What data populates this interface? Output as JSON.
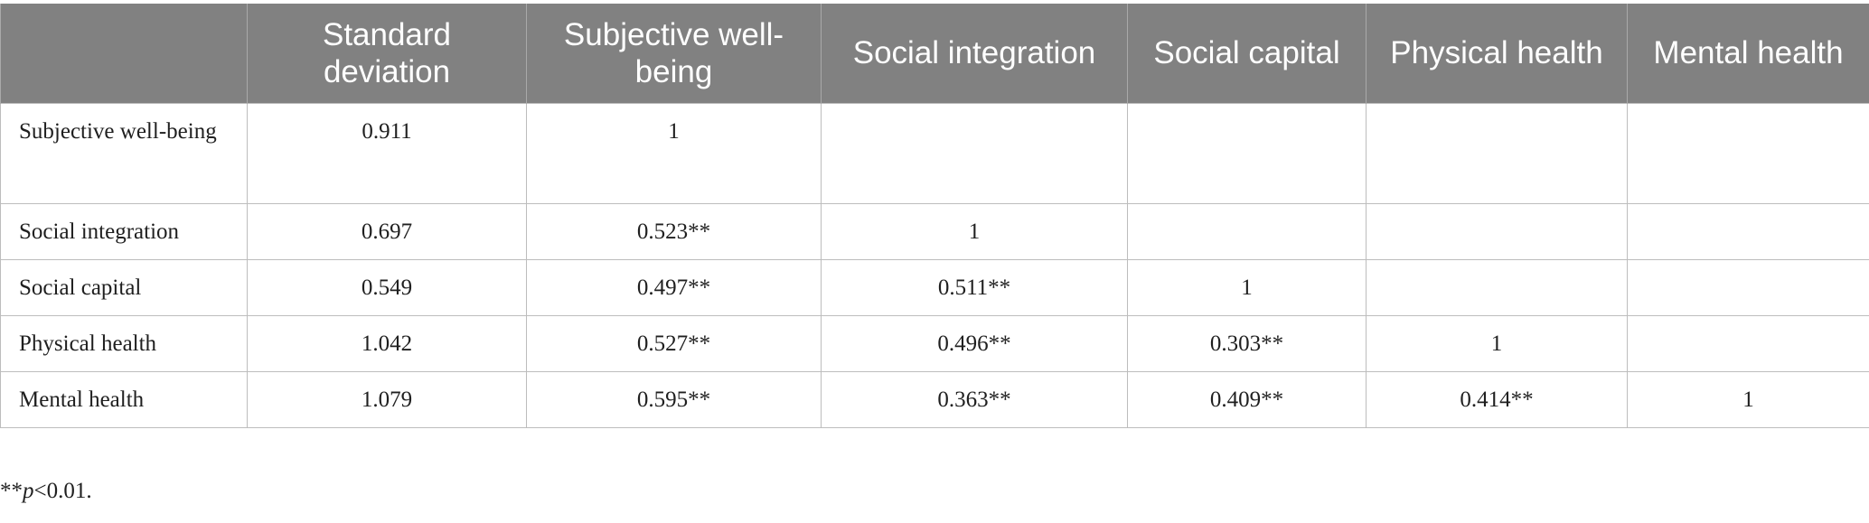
{
  "table": {
    "headers": [
      "",
      "Standard deviation",
      "Subjective well-being",
      "Social integration",
      "Social capital",
      "Physical health",
      "Mental health"
    ],
    "rows": [
      {
        "label": "Subjective well-being",
        "cells": [
          "0.911",
          "1",
          "",
          "",
          "",
          ""
        ]
      },
      {
        "label": "Social integration",
        "cells": [
          "0.697",
          "0.523**",
          "1",
          "",
          "",
          ""
        ]
      },
      {
        "label": "Social capital",
        "cells": [
          "0.549",
          "0.497**",
          "0.511**",
          "1",
          "",
          ""
        ]
      },
      {
        "label": "Physical health",
        "cells": [
          "1.042",
          "0.527**",
          "0.496**",
          "0.303**",
          "1",
          ""
        ]
      },
      {
        "label": "Mental health",
        "cells": [
          "1.079",
          "0.595**",
          "0.363**",
          "0.409**",
          "0.414**",
          "1"
        ]
      }
    ]
  },
  "footnote": {
    "prefix": "**",
    "italic": "p",
    "suffix": "<0.01."
  }
}
